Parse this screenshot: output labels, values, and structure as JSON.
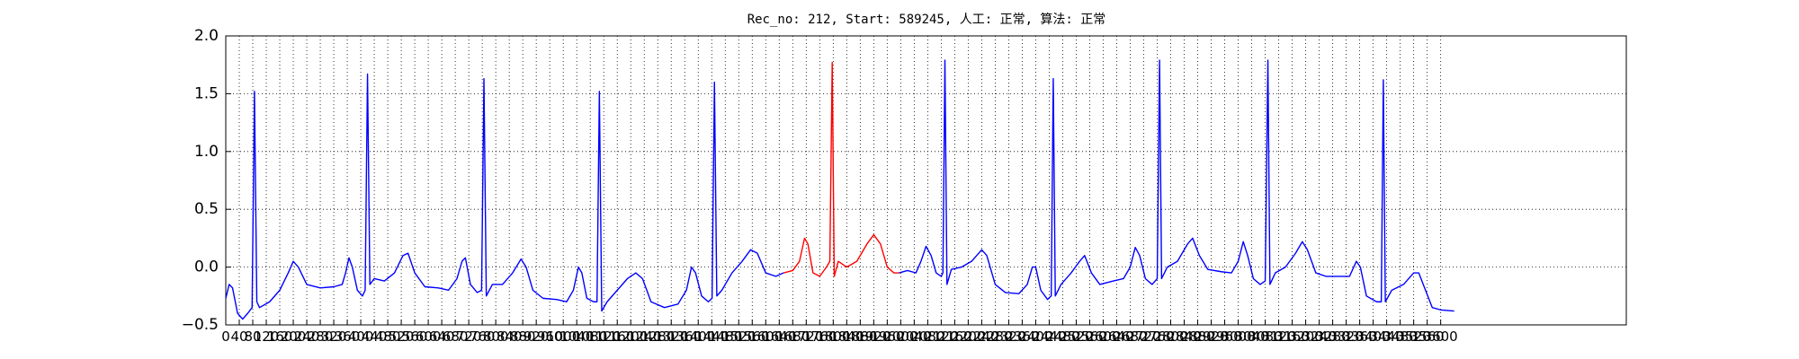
{
  "chart_data": {
    "type": "line",
    "title": "Rec_no: 212, Start: 589245, 人工: 正常, 算法: 正常",
    "xlim": [
      0,
      4150
    ],
    "ylim": [
      -0.5,
      2.0
    ],
    "grid": true,
    "yticks": [
      {
        "value": -0.5,
        "label": "−0.5"
      },
      {
        "value": 0,
        "label": "0.0"
      },
      {
        "value": 0.5,
        "label": "0.5"
      },
      {
        "value": 1,
        "label": "1.0"
      },
      {
        "value": 1.5,
        "label": "1.5"
      },
      {
        "value": 2,
        "label": "2.0"
      }
    ],
    "xticks": [
      0,
      40,
      80,
      120,
      160,
      200,
      240,
      280,
      320,
      360,
      400,
      440,
      480,
      520,
      560,
      600,
      640,
      680,
      720,
      760,
      800,
      840,
      880,
      920,
      960,
      1000,
      1040,
      1080,
      1120,
      1160,
      1200,
      1240,
      1280,
      1320,
      1360,
      1400,
      1440,
      1480,
      1520,
      1560,
      1600,
      1640,
      1680,
      1720,
      1760,
      1800,
      1840,
      1880,
      1920,
      1960,
      2000,
      2040,
      2080,
      2120,
      2160,
      2200,
      2240,
      2280,
      2320,
      2360,
      2400,
      2440,
      2480,
      2520,
      2560,
      2600,
      2640,
      2680,
      2720,
      2760,
      2800,
      2840,
      2880,
      2920,
      2960,
      3000,
      3040,
      3080,
      3120,
      3160,
      3200,
      3240,
      3280,
      3320,
      3360,
      3400,
      3440,
      3480,
      3520,
      3560,
      3600
    ],
    "series": [
      {
        "color": "#0000ff",
        "x": [
          0,
          10,
          20,
          35,
          50,
          65,
          78,
          85,
          92,
          100,
          130,
          160,
          185,
          200,
          215,
          240,
          280,
          320,
          345,
          355,
          365,
          375,
          390,
          405,
          413,
          420,
          427,
          440,
          470,
          500,
          525,
          540,
          560,
          590,
          630,
          660,
          685,
          700,
          710,
          725,
          745,
          758,
          765,
          772,
          790,
          820,
          850,
          875,
          890,
          910,
          940,
          980,
          1010,
          1030,
          1045,
          1055,
          1070,
          1090,
          1100,
          1107,
          1114,
          1130,
          1160,
          1190,
          1215,
          1235,
          1260,
          1300,
          1340,
          1365,
          1380,
          1392,
          1410,
          1430,
          1441,
          1448,
          1455,
          1470,
          1500,
          1530,
          1555,
          1575,
          1600,
          1630,
          1653,
          1797,
          1995,
          2020,
          2045,
          2060,
          2075,
          2090,
          2105,
          2120,
          2125,
          2131,
          2137,
          2150,
          2180,
          2210,
          2240,
          2255,
          2280,
          2310,
          2350,
          2375,
          2390,
          2400,
          2415,
          2435,
          2446,
          2452,
          2458,
          2475,
          2505,
          2530,
          2545,
          2565,
          2590,
          2630,
          2660,
          2680,
          2695,
          2708,
          2725,
          2745,
          2760,
          2767,
          2773,
          2790,
          2820,
          2850,
          2865,
          2885,
          2910,
          2950,
          2980,
          3000,
          3015,
          3028,
          3045,
          3065,
          3080,
          3088,
          3094,
          3110,
          3140,
          3170,
          3190,
          3205,
          3230,
          3260,
          3300,
          3330,
          3350,
          3362,
          3380,
          3410,
          3424,
          3430,
          3436,
          3455,
          3490,
          3520,
          3535,
          3555,
          3575,
          3600,
          3640
        ],
        "values": [
          -0.27,
          -0.15,
          -0.18,
          -0.4,
          -0.45,
          -0.4,
          -0.35,
          1.52,
          -0.3,
          -0.35,
          -0.3,
          -0.2,
          -0.05,
          0.05,
          0.0,
          -0.15,
          -0.18,
          -0.17,
          -0.15,
          -0.05,
          0.08,
          0.0,
          -0.2,
          -0.25,
          -0.2,
          1.67,
          -0.15,
          -0.1,
          -0.12,
          -0.05,
          0.1,
          0.12,
          -0.05,
          -0.17,
          -0.18,
          -0.2,
          -0.1,
          0.05,
          0.08,
          -0.15,
          -0.22,
          -0.2,
          1.63,
          -0.25,
          -0.15,
          -0.15,
          -0.05,
          0.07,
          0.0,
          -0.2,
          -0.27,
          -0.28,
          -0.3,
          -0.2,
          0.0,
          -0.05,
          -0.27,
          -0.3,
          -0.3,
          1.52,
          -0.38,
          -0.3,
          -0.2,
          -0.1,
          -0.05,
          -0.1,
          -0.3,
          -0.35,
          -0.32,
          -0.2,
          0.0,
          -0.05,
          -0.25,
          -0.3,
          -0.27,
          1.6,
          -0.25,
          -0.2,
          -0.05,
          0.05,
          0.15,
          0.12,
          -0.05,
          -0.08,
          -0.05,
          null,
          -0.05,
          -0.03,
          -0.05,
          0.05,
          0.18,
          0.1,
          -0.05,
          -0.08,
          -0.05,
          1.79,
          -0.15,
          -0.02,
          0.0,
          0.05,
          0.15,
          0.1,
          -0.15,
          -0.22,
          -0.23,
          -0.15,
          0.0,
          0.0,
          -0.2,
          -0.28,
          -0.25,
          1.63,
          -0.25,
          -0.15,
          -0.05,
          0.05,
          0.1,
          -0.05,
          -0.15,
          -0.12,
          -0.1,
          0.0,
          0.17,
          0.1,
          -0.1,
          -0.15,
          -0.1,
          1.79,
          -0.1,
          0.0,
          0.05,
          0.2,
          0.25,
          0.1,
          -0.02,
          -0.04,
          -0.05,
          0.05,
          0.22,
          0.1,
          -0.1,
          -0.15,
          -0.12,
          1.79,
          -0.15,
          -0.05,
          0.0,
          0.12,
          0.22,
          0.15,
          -0.05,
          -0.08,
          -0.08,
          -0.08,
          0.05,
          0.0,
          -0.25,
          -0.3,
          -0.3,
          1.62,
          -0.3,
          -0.2,
          -0.15,
          -0.05,
          -0.05,
          -0.2,
          -0.35,
          -0.37,
          -0.38
        ]
      },
      {
        "color": "#ff0000",
        "x": [
          1653,
          1680,
          1700,
          1715,
          1725,
          1740,
          1760,
          1780,
          1790,
          1797,
          1803,
          1815,
          1840,
          1870,
          1900,
          1920,
          1940,
          1960,
          1980,
          1995
        ],
        "values": [
          -0.05,
          -0.03,
          0.05,
          0.25,
          0.2,
          -0.05,
          -0.08,
          0.0,
          0.05,
          1.77,
          -0.08,
          0.05,
          0.0,
          0.05,
          0.2,
          0.28,
          0.2,
          0.0,
          -0.05,
          -0.05
        ]
      }
    ]
  }
}
